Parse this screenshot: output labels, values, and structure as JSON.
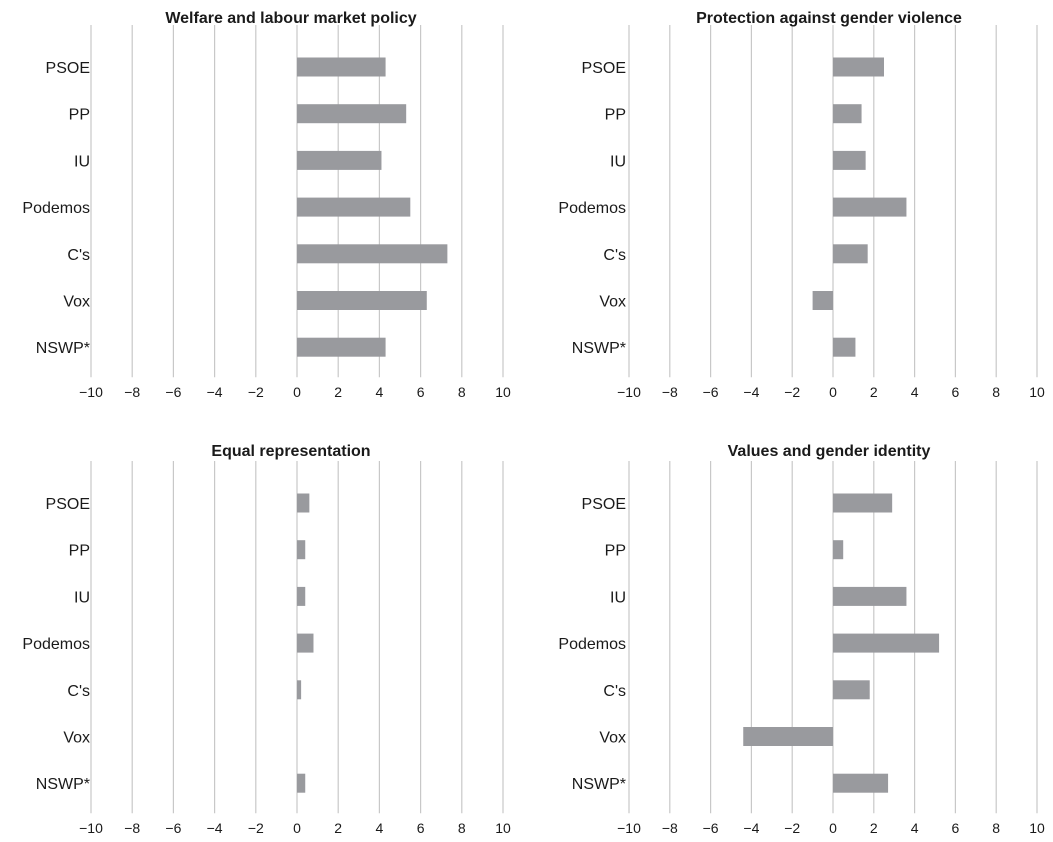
{
  "chart_data": [
    {
      "type": "bar",
      "orientation": "horizontal",
      "title": "Welfare and labour market policy",
      "categories": [
        "PSOE",
        "PP",
        "IU",
        "Podemos",
        "C's",
        "Vox",
        "NSWP*"
      ],
      "values": [
        4.3,
        5.3,
        4.1,
        5.5,
        7.3,
        6.3,
        4.3
      ],
      "xlim": [
        -10,
        10
      ],
      "xticks": [
        "−10",
        "−8",
        "−6",
        "−4",
        "−2",
        "0",
        "2",
        "4",
        "6",
        "8",
        "10"
      ],
      "grid": true,
      "bar_color": "#999a9e"
    },
    {
      "type": "bar",
      "orientation": "horizontal",
      "title": "Protection against gender violence",
      "categories": [
        "PSOE",
        "PP",
        "IU",
        "Podemos",
        "C's",
        "Vox",
        "NSWP*"
      ],
      "values": [
        2.5,
        1.4,
        1.6,
        3.6,
        1.7,
        -1.0,
        1.1
      ],
      "xlim": [
        -10,
        10
      ],
      "xticks": [
        "−10",
        "−8",
        "−6",
        "−4",
        "−2",
        "0",
        "2",
        "4",
        "6",
        "8",
        "10"
      ],
      "grid": true,
      "bar_color": "#999a9e"
    },
    {
      "type": "bar",
      "orientation": "horizontal",
      "title": "Equal representation",
      "categories": [
        "PSOE",
        "PP",
        "IU",
        "Podemos",
        "C's",
        "Vox",
        "NSWP*"
      ],
      "values": [
        0.6,
        0.4,
        0.4,
        0.8,
        0.2,
        0.0,
        0.4
      ],
      "xlim": [
        -10,
        10
      ],
      "xticks": [
        "−10",
        "−8",
        "−6",
        "−4",
        "−2",
        "0",
        "2",
        "4",
        "6",
        "8",
        "10"
      ],
      "grid": true,
      "bar_color": "#999a9e"
    },
    {
      "type": "bar",
      "orientation": "horizontal",
      "title": "Values and gender identity",
      "categories": [
        "PSOE",
        "PP",
        "IU",
        "Podemos",
        "C's",
        "Vox",
        "NSWP*"
      ],
      "values": [
        2.9,
        0.5,
        3.6,
        5.2,
        1.8,
        -4.4,
        2.7
      ],
      "xlim": [
        -10,
        10
      ],
      "xticks": [
        "−10",
        "−8",
        "−6",
        "−4",
        "−2",
        "0",
        "2",
        "4",
        "6",
        "8",
        "10"
      ],
      "grid": true,
      "bar_color": "#999a9e"
    }
  ]
}
